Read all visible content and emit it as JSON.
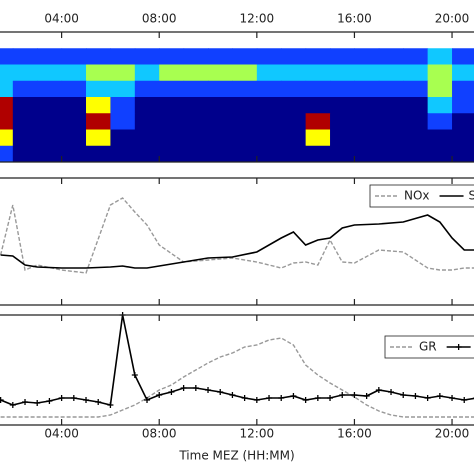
{
  "chart_data": [
    {
      "type": "heatmap",
      "bins": [
        1,
        2,
        3,
        4,
        5,
        6,
        7,
        8,
        9,
        10,
        11,
        12,
        13,
        14,
        15,
        16,
        17,
        18,
        19,
        20,
        21
      ],
      "z": [
        [
          0,
          0,
          0,
          0,
          0,
          0,
          0,
          0,
          0,
          0,
          0,
          0,
          0,
          0,
          0,
          0,
          0,
          0,
          0,
          0
        ],
        [
          2,
          2,
          2,
          2,
          2,
          2,
          2,
          2,
          2,
          2,
          2,
          2,
          2,
          2,
          2,
          2,
          2,
          2,
          3,
          2
        ],
        [
          3,
          3,
          3,
          3,
          4,
          4,
          3,
          4,
          4,
          4,
          4,
          3,
          3,
          3,
          3,
          3,
          3,
          3,
          4,
          3
        ],
        [
          3,
          2,
          2,
          2,
          3,
          3,
          2,
          2,
          2,
          2,
          2,
          2,
          2,
          2,
          2,
          2,
          2,
          2,
          4,
          2
        ],
        [
          6,
          1,
          1,
          1,
          5,
          2,
          1,
          1,
          1,
          1,
          1,
          1,
          1,
          1,
          1,
          1,
          1,
          1,
          3,
          2
        ],
        [
          6,
          1,
          1,
          1,
          6,
          2,
          1,
          1,
          1,
          1,
          1,
          1,
          1,
          6,
          1,
          1,
          1,
          1,
          2,
          1
        ],
        [
          5,
          1,
          1,
          1,
          5,
          1,
          1,
          1,
          1,
          1,
          1,
          1,
          1,
          5,
          1,
          1,
          1,
          1,
          1,
          1
        ],
        [
          2,
          1,
          1,
          1,
          1,
          1,
          1,
          1,
          1,
          1,
          1,
          1,
          1,
          1,
          1,
          1,
          1,
          1,
          1,
          1
        ]
      ],
      "colors": [
        "#ffffff",
        "#00008c",
        "#1040ff",
        "#10c8ff",
        "#a8ff50",
        "#ffff00",
        "#b00000"
      ],
      "xlim": [
        1.475,
        20.9
      ],
      "xticks": [
        {
          "value": 4,
          "label": "04:00"
        },
        {
          "value": 8,
          "label": "08:00"
        },
        {
          "value": 12,
          "label": "12:00"
        },
        {
          "value": 16,
          "label": "16:00"
        },
        {
          "value": 20,
          "label": "20:00"
        }
      ]
    },
    {
      "type": "line",
      "x": [
        1.5,
        2,
        2.5,
        3,
        4,
        5,
        6,
        6.5,
        7,
        7.5,
        8,
        9,
        10,
        11,
        12,
        13,
        13.5,
        14,
        14.5,
        15,
        15.5,
        16,
        17,
        18,
        19,
        19.5,
        20,
        20.5,
        21
      ],
      "series": [
        {
          "name": "NOx",
          "color": "#999999",
          "dash": true,
          "values": [
            50,
            100,
            35,
            40,
            35,
            32,
            100,
            107,
            93,
            80,
            60,
            43,
            45,
            47,
            43,
            37,
            42,
            43,
            40,
            65,
            43,
            42,
            55,
            53,
            37,
            35,
            35,
            37,
            37
          ]
        },
        {
          "name": "S",
          "color": "#000000",
          "values": [
            50,
            49,
            40,
            38,
            37,
            37,
            38,
            39,
            37,
            37,
            39,
            43,
            47,
            48,
            53,
            67,
            73,
            60,
            65,
            67,
            77,
            80,
            81,
            83,
            90,
            83,
            67,
            55,
            55
          ]
        }
      ],
      "xlim": [
        1.475,
        20.9
      ],
      "ylim": [
        0,
        127
      ],
      "xticks": [
        4,
        8,
        12,
        16,
        20
      ]
    },
    {
      "type": "line",
      "x": [
        1.5,
        2,
        2.5,
        3,
        3.5,
        4,
        4.5,
        5,
        5.5,
        6,
        6.5,
        7,
        7.5,
        8,
        8.5,
        9,
        9.5,
        10,
        10.5,
        11,
        11.5,
        12,
        12.5,
        13,
        13.5,
        14,
        14.5,
        15,
        15.5,
        16,
        16.5,
        17,
        17.5,
        18,
        18.5,
        19,
        19.5,
        20,
        20.5,
        21
      ],
      "series": [
        {
          "name": "GR",
          "color": "#999999",
          "dash": true,
          "values": [
            8,
            8,
            8,
            8,
            8,
            8,
            8,
            8,
            8,
            10,
            15,
            20,
            27,
            35,
            40,
            48,
            55,
            62,
            68,
            72,
            78,
            80,
            85,
            87,
            80,
            60,
            50,
            42,
            35,
            28,
            20,
            14,
            10,
            8,
            8,
            8,
            8,
            8,
            8,
            8
          ]
        },
        {
          "color": "#000000",
          "markers": true,
          "values": [
            25,
            20,
            23,
            22,
            24,
            27,
            27,
            25,
            23,
            20,
            110,
            50,
            25,
            30,
            33,
            37,
            37,
            35,
            33,
            30,
            27,
            25,
            27,
            27,
            29,
            25,
            27,
            27,
            30,
            30,
            29,
            35,
            33,
            30,
            29,
            27,
            29,
            27,
            25,
            27
          ]
        }
      ],
      "xlim": [
        1.475,
        20.9
      ],
      "ylim": [
        0,
        110
      ],
      "xticks": [
        {
          "value": 4,
          "label": "04:00"
        },
        {
          "value": 8,
          "label": "08:00"
        },
        {
          "value": 12,
          "label": "12:00"
        },
        {
          "value": 16,
          "label": "16:00"
        },
        {
          "value": 20,
          "label": "20:00"
        }
      ],
      "xlabel": "Time MEZ (HH:MM)"
    }
  ]
}
